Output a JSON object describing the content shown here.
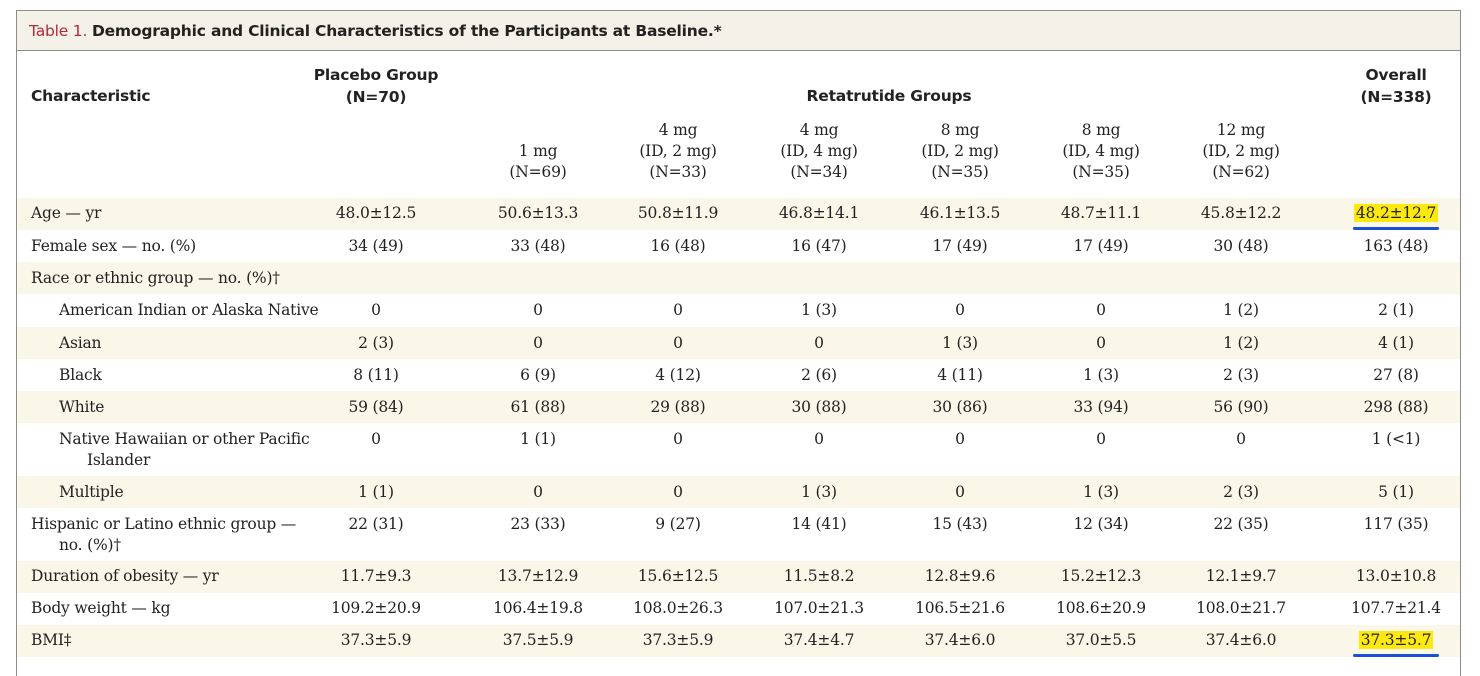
{
  "title": {
    "label": "Table 1.",
    "text": "Demographic and Clinical Characteristics of the Participants at Baseline.*"
  },
  "header": {
    "characteristic": "Characteristic",
    "placebo_line1": "Placebo Group",
    "placebo_line2": "(N=70)",
    "retatrutide": "Retatrutide Groups",
    "overall_line1": "Overall",
    "overall_line2": "(N=338)"
  },
  "subheaders": [
    {
      "lines": [
        "1 mg",
        "(N=69)"
      ]
    },
    {
      "lines": [
        "4 mg",
        "(ID, 2 mg)",
        "(N=33)"
      ]
    },
    {
      "lines": [
        "4 mg",
        "(ID, 4 mg)",
        "(N=34)"
      ]
    },
    {
      "lines": [
        "8 mg",
        "(ID, 2 mg)",
        "(N=35)"
      ]
    },
    {
      "lines": [
        "8 mg",
        "(ID, 4 mg)",
        "(N=35)"
      ]
    },
    {
      "lines": [
        "12 mg",
        "(ID, 2 mg)",
        "(N=62)"
      ]
    }
  ],
  "rows": [
    {
      "label": [
        "Age — yr"
      ],
      "indent": false,
      "values": [
        "48.0±12.5",
        "50.6±13.3",
        "50.8±11.9",
        "46.8±14.1",
        "46.1±13.5",
        "48.7±11.1",
        "45.8±12.2",
        "48.2±12.7"
      ],
      "highlight_overall": true
    },
    {
      "label": [
        "Female sex — no. (%)"
      ],
      "indent": false,
      "values": [
        "34 (49)",
        "33 (48)",
        "16 (48)",
        "16 (47)",
        "17 (49)",
        "17 (49)",
        "30 (48)",
        "163 (48)"
      ]
    },
    {
      "label": [
        "Race or ethnic group — no. (%)†"
      ],
      "indent": false,
      "values": []
    },
    {
      "label": [
        "American Indian or Alaska Native"
      ],
      "indent": true,
      "values": [
        "0",
        "0",
        "0",
        "1 (3)",
        "0",
        "0",
        "1 (2)",
        "2 (1)"
      ]
    },
    {
      "label": [
        "Asian"
      ],
      "indent": true,
      "values": [
        "2 (3)",
        "0",
        "0",
        "0",
        "1 (3)",
        "0",
        "1 (2)",
        "4 (1)"
      ]
    },
    {
      "label": [
        "Black"
      ],
      "indent": true,
      "values": [
        "8 (11)",
        "6 (9)",
        "4 (12)",
        "2 (6)",
        "4 (11)",
        "1 (3)",
        "2 (3)",
        "27 (8)"
      ]
    },
    {
      "label": [
        "White"
      ],
      "indent": true,
      "values": [
        "59 (84)",
        "61 (88)",
        "29 (88)",
        "30 (88)",
        "30 (86)",
        "33 (94)",
        "56 (90)",
        "298 (88)"
      ]
    },
    {
      "label": [
        "Native Hawaiian or other Pacific",
        "Islander"
      ],
      "indent": true,
      "values": [
        "0",
        "1 (1)",
        "0",
        "0",
        "0",
        "0",
        "0",
        "1 (<1)"
      ]
    },
    {
      "label": [
        "Multiple"
      ],
      "indent": true,
      "values": [
        "1 (1)",
        "0",
        "0",
        "1 (3)",
        "0",
        "1 (3)",
        "2 (3)",
        "5 (1)"
      ]
    },
    {
      "label": [
        "Hispanic or Latino ethnic group —",
        "no. (%)†"
      ],
      "indent": false,
      "values": [
        "22 (31)",
        "23 (33)",
        "9 (27)",
        "14 (41)",
        "15 (43)",
        "12 (34)",
        "22 (35)",
        "117 (35)"
      ]
    },
    {
      "label": [
        "Duration of obesity — yr"
      ],
      "indent": false,
      "values": [
        "11.7±9.3",
        "13.7±12.9",
        "15.6±12.5",
        "11.5±8.2",
        "12.8±9.6",
        "15.2±12.3",
        "12.1±9.7",
        "13.0±10.8"
      ]
    },
    {
      "label": [
        "Body weight — kg"
      ],
      "indent": false,
      "values": [
        "109.2±20.9",
        "106.4±19.8",
        "108.0±26.3",
        "107.0±21.3",
        "106.5±21.6",
        "108.6±20.9",
        "108.0±21.7",
        "107.7±21.4"
      ]
    },
    {
      "label": [
        "BMI‡"
      ],
      "indent": false,
      "values": [
        "37.3±5.9",
        "37.5±5.9",
        "37.3±5.9",
        "37.4±4.7",
        "37.4±6.0",
        "37.0±5.5",
        "37.4±6.0",
        "37.3±5.7"
      ],
      "highlight_overall": true
    }
  ],
  "colors": {
    "title_label": "#b22a37",
    "row_shade": "#faf7e9",
    "title_bar": "#f3f1e8",
    "highlight": "#fde910",
    "underline": "#1a4fd6"
  }
}
